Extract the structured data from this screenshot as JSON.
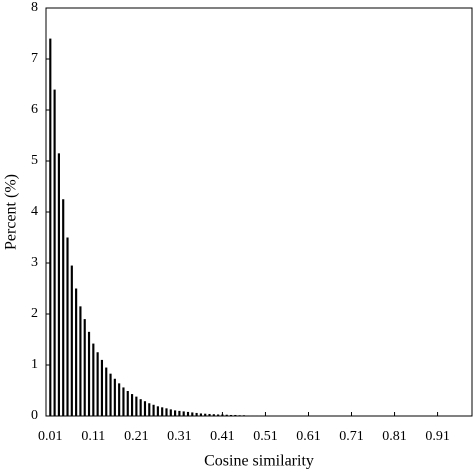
{
  "chart_data": {
    "type": "bar",
    "xlabel": "Cosine similarity",
    "ylabel": "Percent (%)",
    "color": "#000000",
    "x": [
      0.01,
      0.02,
      0.03,
      0.04,
      0.05,
      0.06,
      0.07,
      0.08,
      0.09,
      0.1,
      0.11,
      0.12,
      0.13,
      0.14,
      0.15,
      0.16,
      0.17,
      0.18,
      0.19,
      0.2,
      0.21,
      0.22,
      0.23,
      0.24,
      0.25,
      0.26,
      0.27,
      0.28,
      0.29,
      0.3,
      0.31,
      0.32,
      0.33,
      0.34,
      0.35,
      0.36,
      0.37,
      0.38,
      0.39,
      0.4,
      0.41,
      0.42,
      0.43,
      0.44,
      0.45,
      0.46,
      0.47,
      0.48,
      0.49,
      0.5,
      0.51,
      0.52,
      0.53,
      0.54,
      0.55,
      0.56,
      0.57,
      0.58,
      0.59
    ],
    "values": [
      7.4,
      6.4,
      5.15,
      4.25,
      3.5,
      2.95,
      2.5,
      2.15,
      1.9,
      1.65,
      1.42,
      1.25,
      1.1,
      0.95,
      0.83,
      0.73,
      0.64,
      0.56,
      0.49,
      0.43,
      0.38,
      0.33,
      0.29,
      0.25,
      0.22,
      0.19,
      0.17,
      0.15,
      0.13,
      0.11,
      0.1,
      0.09,
      0.08,
      0.07,
      0.06,
      0.05,
      0.045,
      0.04,
      0.035,
      0.03,
      0.03,
      0.025,
      0.02,
      0.02,
      0.015,
      0.015,
      0.01,
      0.01,
      0.01,
      0.01,
      0.01,
      0.005,
      0.005,
      0.005,
      0.005,
      0.005,
      0.005,
      0.005,
      0.005
    ],
    "xlim": [
      0,
      0.99
    ],
    "xticks": [
      0.01,
      0.11,
      0.21,
      0.31,
      0.41,
      0.51,
      0.61,
      0.71,
      0.81,
      0.91
    ],
    "ylim": [
      0,
      8
    ],
    "yticks": [
      0,
      1,
      2,
      3,
      4,
      5,
      6,
      7,
      8
    ],
    "grid": false
  }
}
